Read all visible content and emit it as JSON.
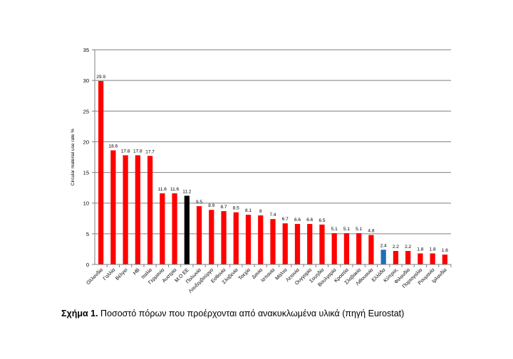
{
  "chart_data": {
    "type": "bar",
    "title": "",
    "xlabel": "",
    "ylabel": "Circular material use rate %",
    "ylim": [
      0,
      35
    ],
    "yticks": [
      0,
      5,
      10,
      15,
      20,
      25,
      30,
      35
    ],
    "grid": true,
    "legend": "none",
    "categories": [
      "Ολλανδία",
      "Γαλλία",
      "Βέλγιο",
      "ΗΒ",
      "Ιταλία",
      "Γερμανία",
      "Αυστρία",
      "Μ.Ο ΕΕ",
      "Πολωνία",
      "Λουξεμβούργο",
      "Εσθονία",
      "Σλοβενία",
      "Τσεχία",
      "Δανία",
      "Ισπανία",
      "Μάλτα",
      "Λετονία",
      "Ουγγαρία",
      "Σουηδία",
      "Βουλγαρία",
      "Κροατία",
      "Σλοβακία",
      "Λιθουανία",
      "Ελλάδα",
      "Κύπρος",
      "Φιλανδία",
      "Πορτογαλία",
      "Ρουμανία",
      "Ιρλανδία"
    ],
    "values": [
      29.9,
      18.6,
      17.8,
      17.8,
      17.7,
      11.6,
      11.6,
      11.2,
      9.5,
      8.9,
      8.7,
      8.5,
      8.1,
      8,
      7.4,
      6.7,
      6.6,
      6.6,
      6.5,
      5.1,
      5.1,
      5.1,
      4.8,
      2.4,
      2.2,
      2.2,
      1.8,
      1.8,
      1.6
    ],
    "value_labels": [
      "29.9",
      "18.6",
      "17.8",
      "17.8",
      "17.7",
      "11.6",
      "11.6",
      "11.2",
      "9.5",
      "8.9",
      "8.7",
      "8.5",
      "8.1",
      "8",
      "7.4",
      "6.7",
      "6.6",
      "6.6",
      "6.5",
      "5.1",
      "5.1",
      "5.1",
      "4.8",
      "2.4",
      "2.2",
      "2.2",
      "1.8",
      "1.8",
      "1.6"
    ],
    "colors": {
      "default": "#ff0000",
      "highlight_eu_average": "#000000",
      "highlight_greece": "#1f6fb7",
      "grid": "#7f7f7f",
      "axis": "#7f7f7f"
    },
    "highlights": {
      "Μ.Ο ΕΕ": "highlight_eu_average",
      "Ελλάδα": "highlight_greece"
    }
  },
  "caption": {
    "label": "Σχήμα 1.",
    "text": " Ποσοστό πόρων που προέρχονται από ανακυκλωμένα υλικά (πηγή Eurostat)"
  }
}
